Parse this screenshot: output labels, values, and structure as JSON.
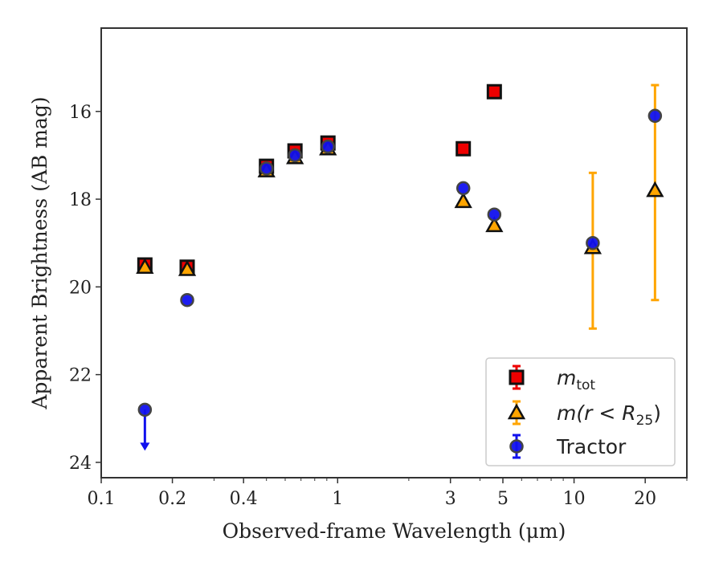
{
  "chart_data": {
    "type": "scatter",
    "xlabel": "Observed-frame Wavelength (μm)",
    "ylabel": "Apparent Brightness (AB mag)",
    "xscale": "log",
    "xlim": [
      0.1,
      30
    ],
    "ylim": [
      24.35,
      14.1
    ],
    "y_inverted": true,
    "xticks": [
      0.1,
      0.2,
      0.4,
      1,
      3,
      5,
      10,
      20
    ],
    "xtick_labels": [
      "0.1",
      "0.2",
      "0.4",
      "1",
      "3",
      "5",
      "10",
      "20"
    ],
    "yticks": [
      16,
      18,
      20,
      22,
      24
    ],
    "ytick_labels": [
      "16",
      "18",
      "20",
      "22",
      "24"
    ],
    "grid": false,
    "legend_position": "lower right",
    "series": [
      {
        "name": "m_tot",
        "legend_main": "m",
        "legend_sub": "tot",
        "marker": "square",
        "color": "#ee0000",
        "points": [
          {
            "x": 0.153,
            "y": 19.5
          },
          {
            "x": 0.231,
            "y": 19.55
          },
          {
            "x": 0.5,
            "y": 17.25
          },
          {
            "x": 0.66,
            "y": 16.9
          },
          {
            "x": 0.91,
            "y": 16.72
          },
          {
            "x": 3.4,
            "y": 16.85
          },
          {
            "x": 4.6,
            "y": 15.55
          }
        ]
      },
      {
        "name": "m(r < R_25)",
        "legend_main": "m(r < R",
        "legend_sub": "25",
        "legend_tail": ")",
        "marker": "triangle",
        "color": "#ffa500",
        "points": [
          {
            "x": 0.153,
            "y": 19.55
          },
          {
            "x": 0.231,
            "y": 19.6
          },
          {
            "x": 0.5,
            "y": 17.35
          },
          {
            "x": 0.66,
            "y": 17.05
          },
          {
            "x": 0.91,
            "y": 16.85
          },
          {
            "x": 3.4,
            "y": 18.05
          },
          {
            "x": 4.6,
            "y": 18.6
          },
          {
            "x": 12,
            "y": 19.1,
            "err_low": 17.4,
            "err_high": 20.95
          },
          {
            "x": 22,
            "y": 17.8,
            "err_low": 15.4,
            "err_high": 20.3
          }
        ]
      },
      {
        "name": "Tractor",
        "legend_main": "Tractor",
        "marker": "circle",
        "color": "#1111ee",
        "points": [
          {
            "x": 0.153,
            "y": 22.8,
            "upper_limit": true
          },
          {
            "x": 0.231,
            "y": 20.3
          },
          {
            "x": 0.5,
            "y": 17.3
          },
          {
            "x": 0.66,
            "y": 17.0
          },
          {
            "x": 0.91,
            "y": 16.8
          },
          {
            "x": 3.4,
            "y": 17.75
          },
          {
            "x": 4.6,
            "y": 18.35
          },
          {
            "x": 12,
            "y": 19.0
          },
          {
            "x": 22,
            "y": 16.1
          }
        ]
      }
    ]
  }
}
